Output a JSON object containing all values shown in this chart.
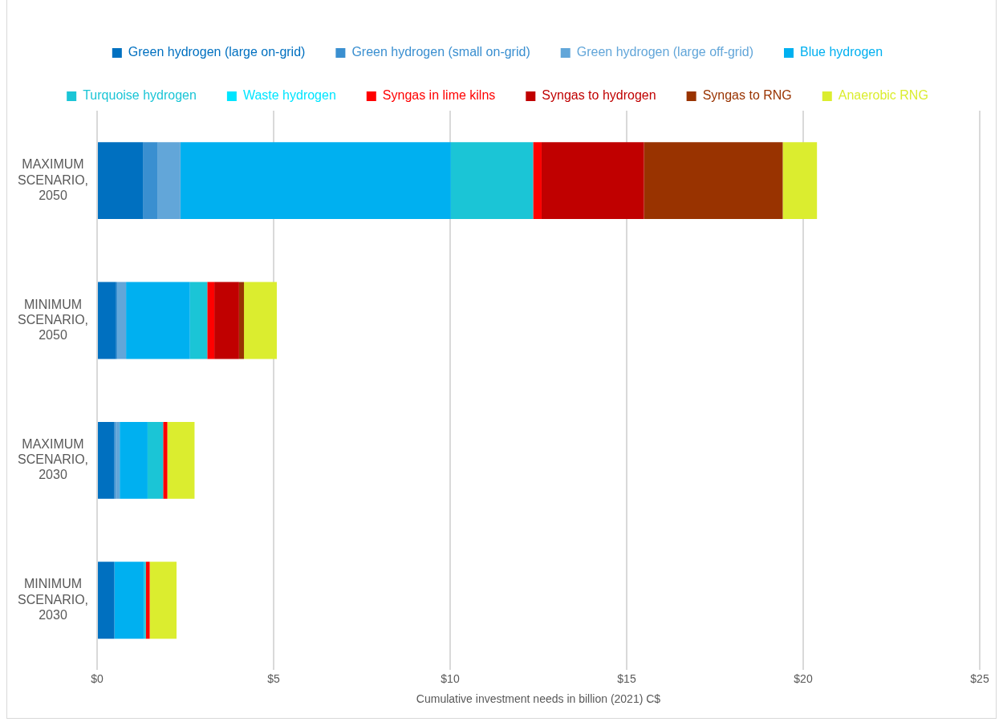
{
  "chart_data": {
    "type": "bar",
    "orientation": "horizontal",
    "stacked": true,
    "xlabel": "Cumulative investment needs in billion (2021) C$",
    "categories": [
      "MAXIMUM SCENARIO, 2050",
      "MINIMUM SCENARIO, 2050",
      "MAXIMUM SCENARIO, 2030",
      "MINIMUM SCENARIO, 2030"
    ],
    "series": [
      {
        "name": "Green hydrogen (large on-grid)",
        "color": "#0070c0",
        "values": [
          1.31,
          0.54,
          0.49,
          0.49
        ]
      },
      {
        "name": "Green hydrogen (small on-grid)",
        "color": "#3a8fd0",
        "values": [
          0.41,
          0.03,
          0.04,
          null
        ]
      },
      {
        "name": "Green hydrogen (large off-grid)",
        "color": "#62a6d9",
        "values": [
          0.64,
          0.25,
          0.11,
          0
        ]
      },
      {
        "name": "Blue hydrogen",
        "color": "#00b0f0",
        "values": [
          7.66,
          1.81,
          0.79,
          0.84
        ]
      },
      {
        "name": "Turquoise hydrogen",
        "color": "#1bc5d6",
        "values": [
          2.33,
          0.49,
          0.44,
          0.05
        ]
      },
      {
        "name": "Waste hydrogen",
        "color": "#00e5ff",
        "values": [
          0,
          0,
          0,
          0
        ]
      },
      {
        "name": "Syngas in lime kilns",
        "color": "#ff0000",
        "values": [
          0.24,
          0.2,
          0.12,
          0.11
        ]
      },
      {
        "name": "Syngas to hydrogen",
        "color": "#c00000",
        "values": [
          2.9,
          0.7,
          0,
          0
        ]
      },
      {
        "name": "Syngas to RNG",
        "color": "#993300",
        "values": [
          3.93,
          0.14,
          0,
          0
        ]
      },
      {
        "name": "Anaerobic RNG",
        "color": "#dbed2f",
        "values": [
          0.97,
          0.93,
          0.77,
          0.76
        ]
      }
    ],
    "xlim": [
      0,
      25
    ],
    "xticks": [
      {
        "value": 0,
        "label": "$0"
      },
      {
        "value": 5,
        "label": "$5"
      },
      {
        "value": 10,
        "label": "$10"
      },
      {
        "value": 15,
        "label": "$15"
      },
      {
        "value": 20,
        "label": "$20"
      },
      {
        "value": 25,
        "label": "$25"
      }
    ],
    "grid": "x",
    "legend": "top"
  }
}
